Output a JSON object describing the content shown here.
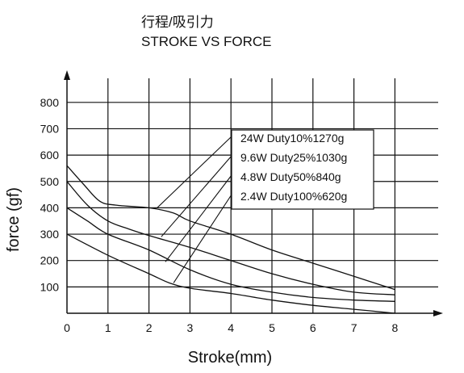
{
  "chart_data": {
    "type": "line",
    "title": "行程/吸引力",
    "subtitle": "STROKE VS FORCE",
    "xlabel": "Stroke(mm)",
    "ylabel": "force (gf)",
    "xlim": [
      0,
      9
    ],
    "ylim": [
      0,
      900
    ],
    "x_ticks": [
      "0",
      "1",
      "2",
      "3",
      "4",
      "5",
      "6",
      "7",
      "8"
    ],
    "y_ticks": [
      "100",
      "200",
      "300",
      "400",
      "500",
      "600",
      "700",
      "800"
    ],
    "grid": true,
    "legend_position": "upper-right box with leader lines",
    "series": [
      {
        "name": "24W Duty10%1270g",
        "x": [
          0,
          0.4,
          0.8,
          1.2,
          2.0,
          2.6,
          3.0,
          4.0,
          5.0,
          6.0,
          7.0,
          8.0
        ],
        "y": [
          560,
          490,
          425,
          410,
          400,
          380,
          350,
          300,
          240,
          190,
          140,
          90
        ]
      },
      {
        "name": "9.6W Duty25%1030g",
        "x": [
          0,
          0.5,
          1.0,
          1.5,
          2.0,
          3.0,
          4.0,
          5.0,
          6.0,
          7.0,
          8.0
        ],
        "y": [
          500,
          410,
          350,
          320,
          295,
          250,
          200,
          150,
          110,
          80,
          70
        ]
      },
      {
        "name": "4.8W Duty50%840g",
        "x": [
          0,
          0.5,
          1.0,
          2.0,
          3.0,
          4.0,
          5.0,
          6.0,
          7.0,
          8.0
        ],
        "y": [
          400,
          350,
          300,
          240,
          165,
          110,
          80,
          60,
          50,
          45
        ]
      },
      {
        "name": "2.4W Duty100%620g",
        "x": [
          0,
          1.0,
          2.0,
          2.5,
          3.0,
          4.0,
          5.0,
          6.0,
          7.0,
          8.0
        ],
        "y": [
          300,
          220,
          150,
          115,
          95,
          75,
          50,
          30,
          15,
          0
        ]
      }
    ]
  }
}
